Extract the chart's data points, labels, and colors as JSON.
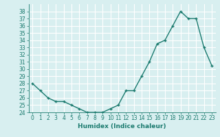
{
  "x": [
    0,
    1,
    2,
    3,
    4,
    5,
    6,
    7,
    8,
    9,
    10,
    11,
    12,
    13,
    14,
    15,
    16,
    17,
    18,
    19,
    20,
    21,
    22,
    23
  ],
  "y": [
    28,
    27,
    26,
    25.5,
    25.5,
    25,
    24.5,
    24,
    24,
    24,
    24.5,
    25,
    27,
    27,
    29,
    31,
    33.5,
    34,
    36,
    38,
    37,
    37,
    33,
    30.5
  ],
  "line_color": "#1a7a6e",
  "marker": "+",
  "marker_color": "#1a7a6e",
  "bg_color": "#d8eff0",
  "grid_color": "#ffffff",
  "xlabel": "Humidex (Indice chaleur)",
  "ylim": [
    24,
    39
  ],
  "xlim": [
    -0.5,
    23.5
  ],
  "yticks": [
    24,
    25,
    26,
    27,
    28,
    29,
    30,
    31,
    32,
    33,
    34,
    35,
    36,
    37,
    38
  ],
  "xticks": [
    0,
    1,
    2,
    3,
    4,
    5,
    6,
    7,
    8,
    9,
    10,
    11,
    12,
    13,
    14,
    15,
    16,
    17,
    18,
    19,
    20,
    21,
    22,
    23
  ],
  "xlabel_fontsize": 6.5,
  "tick_fontsize": 5.5,
  "line_width": 1.0,
  "marker_size": 3.5
}
